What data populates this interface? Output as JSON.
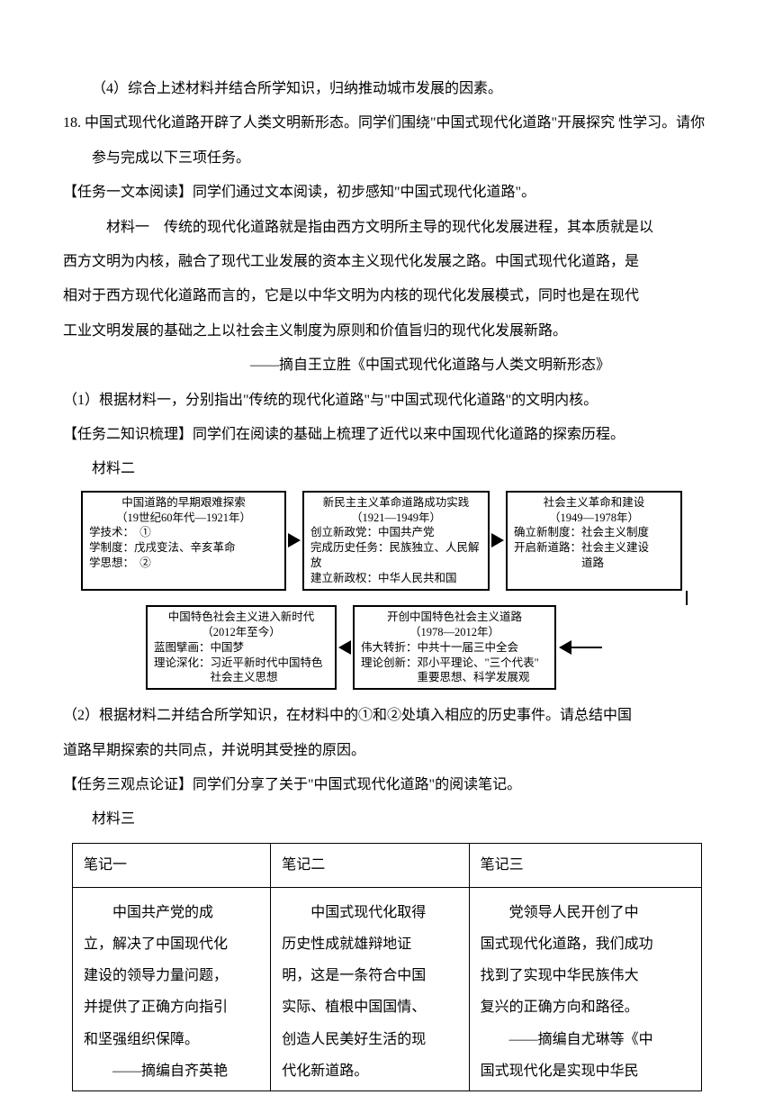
{
  "p_q17_4": "（4）综合上述材料并结合所学知识，归纳推动城市发展的因素。",
  "p_q18_stem1": "18. 中国式现代化道路开辟了人类文明新形态。同学们围绕\"中国式现代化道路\"开展探究",
  "p_q18_stem2": "性学习。请你参与完成以下三项任务。",
  "p_task1_head": "【任务一文本阅读】同学们通过文本阅读，初步感知\"中国式现代化道路\"。",
  "p_m1_1": "材料一　传统的现代化道路就是指由西方文明所主导的现代化发展进程，其本质就是以",
  "p_m1_2": "西方文明为内核，融合了现代工业发展的资本主义现代化发展之路。中国式现代化道路，是",
  "p_m1_3": "相对于西方现代化道路而言的，它是以中华文明为内核的现代化发展模式，同时也是在现代",
  "p_m1_4": "工业文明发展的基础之上以社会主义制度为原则和价值旨归的现代化发展新路。",
  "p_m1_cite": "——摘自王立胜《中国式现代化道路与人类文明新形态》",
  "p_q1": "（1）根据材料一，分别指出\"传统的现代化道路\"与\"中国式现代化道路\"的文明内核。",
  "p_task2_head": "【任务二知识梳理】同学们在阅读的基础上梳理了近代以来中国现代化道路的探索历程。",
  "p_m2_label": "材料二",
  "fc": {
    "box_a": {
      "title1": "中国道路的早期艰难探索",
      "title2": "（19世纪60年代—1921年）",
      "l1": "学技术：　①",
      "l2": "学制度：戊戌变法、辛亥革命",
      "l3": "学思想：　②"
    },
    "box_b": {
      "title1": "新民主主义革命道路成功实践",
      "title2": "（1921—1949年）",
      "l1": "创立新政党：中国共产党",
      "l2": "完成历史任务：民族独立、人民解放",
      "l3": "建立新政权：中华人民共和国"
    },
    "box_c": {
      "title1": "社会主义革命和建设",
      "title2": "（1949—1978年）",
      "l1": "确立新制度：社会主义制度",
      "l2": "开启新道路：社会主义建设",
      "l3": "　　　　　　道路"
    },
    "box_d": {
      "title1": "中国特色社会主义进入新时代",
      "title2": "（2012年至今）",
      "l1": "蓝图擘画：中国梦",
      "l2": "理论深化：习近平新时代中国特色",
      "l3": "　　　　　社会主义思想"
    },
    "box_e": {
      "title1": "开创中国特色社会主义道路",
      "title2": "（1978—2012年）",
      "l1": "伟大转折：中共十一届三中全会",
      "l2": "理论创新：邓小平理论、\"三个代表\"",
      "l3": "　　　　　重要思想、科学发展观"
    }
  },
  "p_q2_1": "（2）根据材料二并结合所学知识，在材料中的①和②处填入相应的历史事件。请总结中国",
  "p_q2_2": "道路早期探索的共同点，并说明其受挫的原因。",
  "p_task3_head": "【任务三观点论证】同学们分享了关于\"中国式现代化道路\"的阅读笔记。",
  "p_m3_label": "材料三",
  "table": {
    "h1": "笔记一",
    "h2": "笔记二",
    "h3": "笔记三",
    "c1": {
      "p1": "中国共产党的成",
      "p2": "立，解决了中国现代化",
      "p3": "建设的领导力量问题，",
      "p4": "并提供了正确方向指引",
      "p5": "和坚强组织保障。",
      "p6": "——摘编自齐英艳"
    },
    "c2": {
      "p1": "中国式现代化取得",
      "p2": "历史性成就雄辩地证",
      "p3": "明，这是一条符合中国",
      "p4": "实际、植根中国国情、",
      "p5": "创造人民美好生活的现",
      "p6": "代化新道路。"
    },
    "c3": {
      "p1": "党领导人民开创了中",
      "p2": "国式现代化道路，我们成功",
      "p3": "找到了实现中华民族伟大",
      "p4": "复兴的正确方向和路径。",
      "p5": "——摘编自尤琳等《中",
      "p6": "国式现代化是实现中华民"
    }
  }
}
